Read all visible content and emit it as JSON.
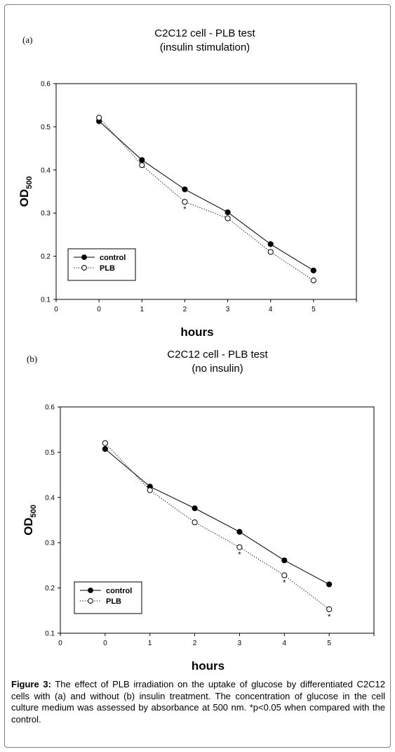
{
  "figure_caption": {
    "label": "Figure 3:",
    "text": "The effect of PLB irradiation on the uptake of glucose by differentiated C2C12 cells with (a) and without (b) insulin treatment. The concentration of glucose in the cell culture medium was assessed by absorbance at 500 nm. *p<0.05 when compared with the control."
  },
  "chart_data": [
    {
      "type": "line",
      "panel": "(a)",
      "title": "C2C12 cell - PLB test",
      "subtitle": "(insulin stimulation)",
      "xlabel": "hours",
      "ylabel": "OD",
      "ylabel_subscript": "500",
      "xlim": [
        0,
        7
      ],
      "ylim": [
        0.1,
        0.6
      ],
      "x_ticks": [
        "0",
        "0",
        "1",
        "2",
        "3",
        "4",
        "5"
      ],
      "y_ticks": [
        "0.1",
        "0.2",
        "0.3",
        "0.4",
        "0.5",
        "0.6"
      ],
      "legend_position": "bottom-left",
      "series": [
        {
          "name": "control",
          "marker": "filled-circle",
          "line": "solid",
          "x": [
            0,
            1,
            2,
            3,
            4,
            5
          ],
          "values": [
            0.513,
            0.423,
            0.355,
            0.302,
            0.228,
            0.167
          ]
        },
        {
          "name": "PLB",
          "marker": "open-circle",
          "line": "dotted",
          "x": [
            0,
            1,
            2,
            3,
            4,
            5
          ],
          "values": [
            0.521,
            0.411,
            0.326,
            0.288,
            0.21,
            0.144
          ]
        }
      ],
      "significance_markers": [
        {
          "x": 2,
          "label": "*"
        }
      ]
    },
    {
      "type": "line",
      "panel": "(b)",
      "title": "C2C12 cell - PLB test",
      "subtitle": "(no insulin)",
      "xlabel": "hours",
      "ylabel": "OD",
      "ylabel_subscript": "500",
      "xlim": [
        0,
        7
      ],
      "ylim": [
        0.1,
        0.6
      ],
      "x_ticks": [
        "0",
        "0",
        "1",
        "2",
        "3",
        "4",
        "5"
      ],
      "y_ticks": [
        "0.1",
        "0.2",
        "0.3",
        "0.4",
        "0.5",
        "0.6"
      ],
      "legend_position": "bottom-left",
      "series": [
        {
          "name": "control",
          "marker": "filled-circle",
          "line": "solid",
          "x": [
            0,
            1,
            2,
            3,
            4,
            5
          ],
          "values": [
            0.507,
            0.424,
            0.376,
            0.324,
            0.261,
            0.208
          ]
        },
        {
          "name": "PLB",
          "marker": "open-circle",
          "line": "dotted",
          "x": [
            0,
            1,
            2,
            3,
            4,
            5
          ],
          "values": [
            0.52,
            0.416,
            0.345,
            0.29,
            0.228,
            0.153
          ]
        }
      ],
      "significance_markers": [
        {
          "x": 3,
          "label": "*"
        },
        {
          "x": 4,
          "label": "*"
        },
        {
          "x": 5,
          "label": "*"
        }
      ]
    }
  ]
}
